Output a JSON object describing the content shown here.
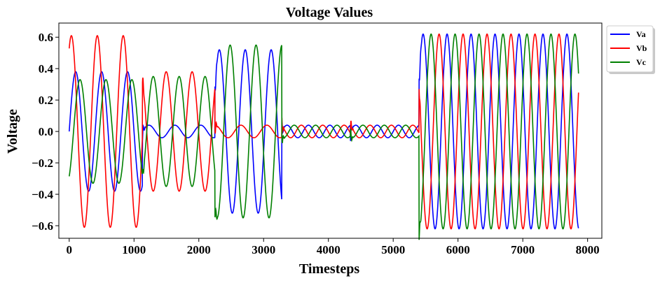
{
  "chart_data": {
    "type": "line",
    "title": "Voltage Values",
    "xlabel": "Timesteps",
    "ylabel": "Voltage",
    "xlim": [
      -160,
      8220
    ],
    "ylim": [
      -0.68,
      0.69
    ],
    "xticks": [
      0,
      1000,
      2000,
      3000,
      4000,
      5000,
      6000,
      7000,
      8000
    ],
    "yticks": [
      -0.6,
      -0.4,
      -0.2,
      0.0,
      0.2,
      0.4,
      0.6
    ],
    "xtick_labels": [
      "0",
      "1000",
      "2000",
      "3000",
      "4000",
      "5000",
      "6000",
      "7000",
      "8000"
    ],
    "ytick_labels": [
      "−0.6",
      "−0.4",
      "−0.2",
      "0.0",
      "0.2",
      "0.4",
      "0.6"
    ],
    "grid": false,
    "legend_position": "outside-top-right",
    "x_range": [
      0,
      7860
    ],
    "segments": [
      {
        "start": 0,
        "end": 1130,
        "period": 400,
        "amplitudes": {
          "Va": 0.38,
          "Vb": 0.61,
          "Vc": 0.33
        },
        "phases_deg": {
          "Va": 0,
          "Vb": 60,
          "Vc": -60
        }
      },
      {
        "start": 1130,
        "end": 2250,
        "period": 400,
        "amplitudes": {
          "Va": 0.04,
          "Vb": 0.38,
          "Vc": 0.35
        },
        "phases_deg": {
          "Va": 0,
          "Vb": 120,
          "Vc": -60
        }
      },
      {
        "start": 2250,
        "end": 3280,
        "period": 400,
        "amplitudes": {
          "Va": 0.52,
          "Vb": 0.04,
          "Vc": 0.55
        },
        "phases_deg": {
          "Va": 30,
          "Vb": 90,
          "Vc": -120
        }
      },
      {
        "start": 3280,
        "end": 4340,
        "period": 330,
        "amplitudes": {
          "Va": 0.04,
          "Vb": 0.04,
          "Vc": 0.04
        },
        "phases_deg": {
          "Va": 0,
          "Vb": 120,
          "Vc": -120
        }
      },
      {
        "start": 4340,
        "end": 5400,
        "period": 330,
        "amplitudes": {
          "Va": 0.04,
          "Vb": 0.04,
          "Vc": 0.04
        },
        "phases_deg": {
          "Va": 0,
          "Vb": 120,
          "Vc": -120
        }
      },
      {
        "start": 5400,
        "end": 7860,
        "period": 370,
        "amplitudes": {
          "Va": 0.62,
          "Vb": 0.62,
          "Vc": 0.62
        },
        "phases_deg": {
          "Va": 30,
          "Vb": 150,
          "Vc": -90
        }
      }
    ],
    "series": [
      {
        "name": "Va",
        "color": "#0000ff"
      },
      {
        "name": "Vb",
        "color": "#ff0000"
      },
      {
        "name": "Vc",
        "color": "#008000"
      }
    ]
  }
}
